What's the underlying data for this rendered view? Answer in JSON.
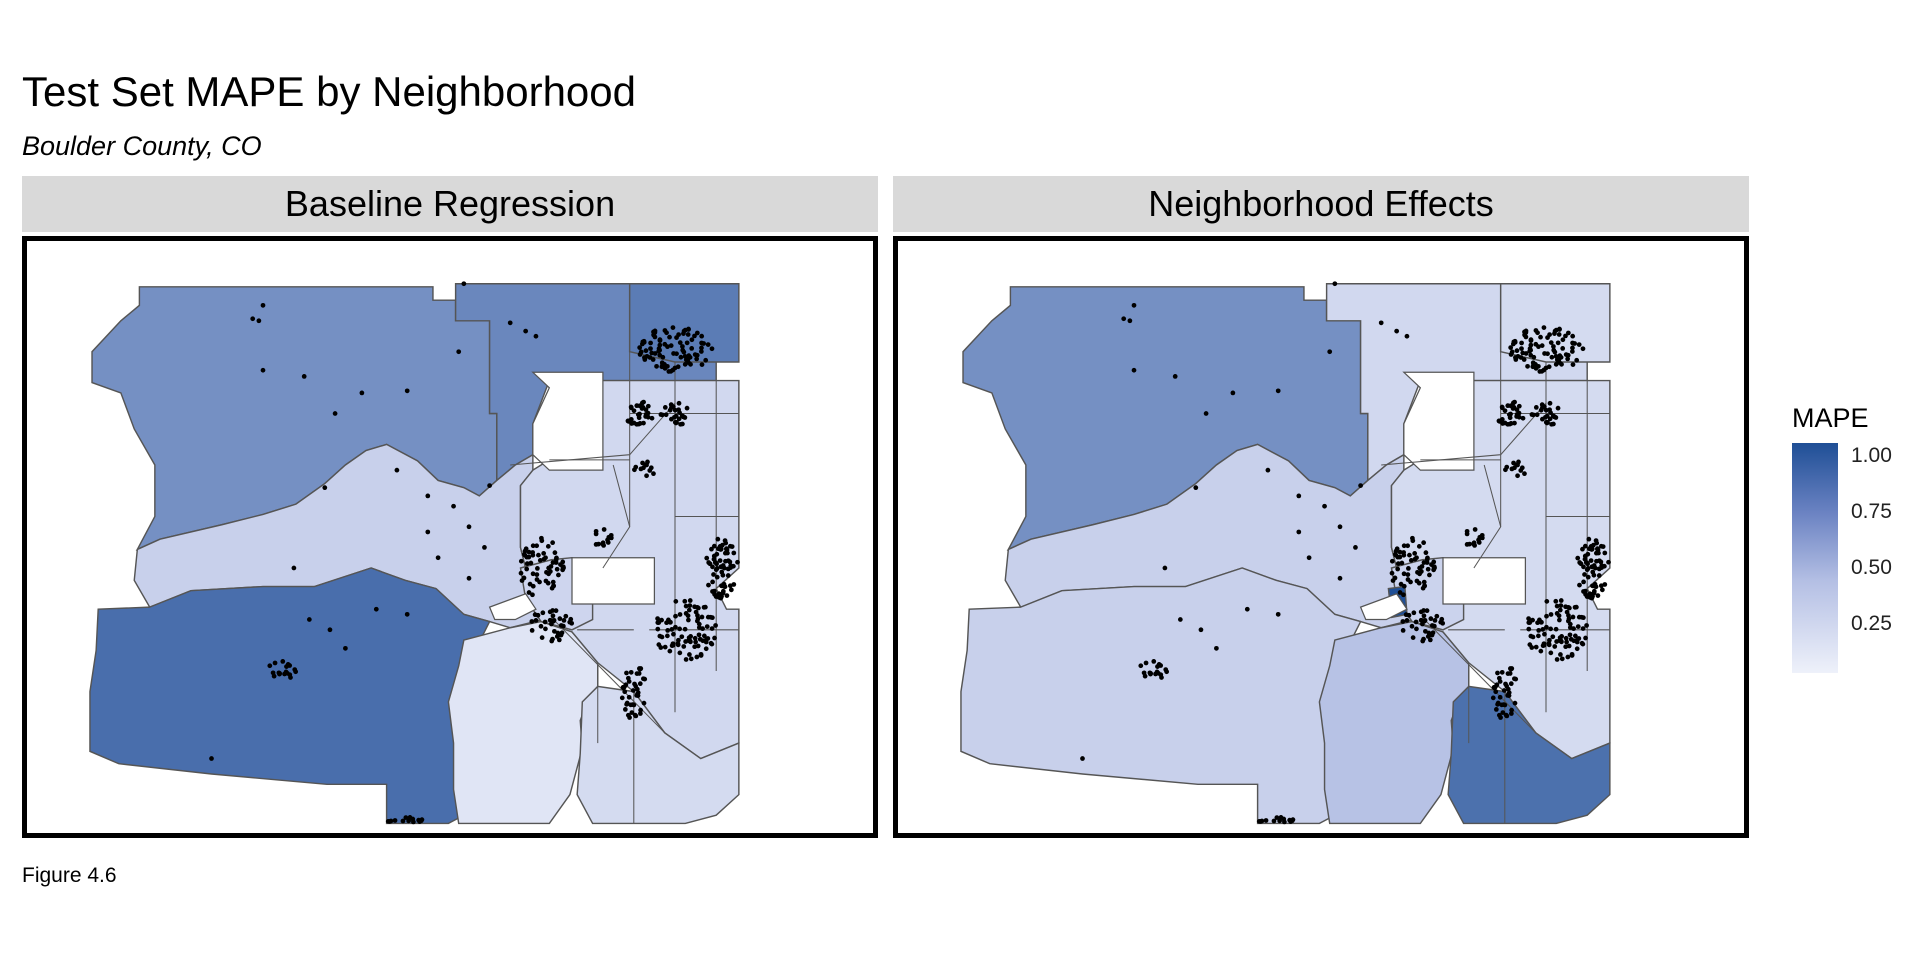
{
  "title": "Test Set MAPE by Neighborhood",
  "subtitle": "Boulder County, CO",
  "caption": "Figure 4.6",
  "colors": {
    "low": "#eef1fa",
    "mid": "#b4bfe4",
    "high": "#1f4f96",
    "na": "#7f7f7f",
    "border": "#555555",
    "point": "#000000"
  },
  "panels": [
    {
      "label": "Baseline Regression",
      "regions": {
        "northwest": 0.71,
        "north_central": 0.75,
        "northeast": 0.8,
        "central_mountain": 0.33,
        "southwest": 0.86,
        "south_central": 0.12,
        "east_grid": 0.25,
        "boulder_core": 0.28,
        "southeast": 0.22
      }
    },
    {
      "label": "Neighborhood Effects",
      "regions": {
        "northwest": 0.71,
        "north_central": 0.25,
        "northeast": 0.22,
        "central_mountain": 0.33,
        "southwest": 0.33,
        "south_central": 0.47,
        "east_grid": 0.22,
        "boulder_core": 0.3,
        "southeast": 0.85,
        "hotspot": 1.0
      }
    }
  ],
  "legend": {
    "title": "MAPE",
    "ticks": [
      "1.00",
      "0.75",
      "0.50",
      "0.25"
    ]
  }
}
